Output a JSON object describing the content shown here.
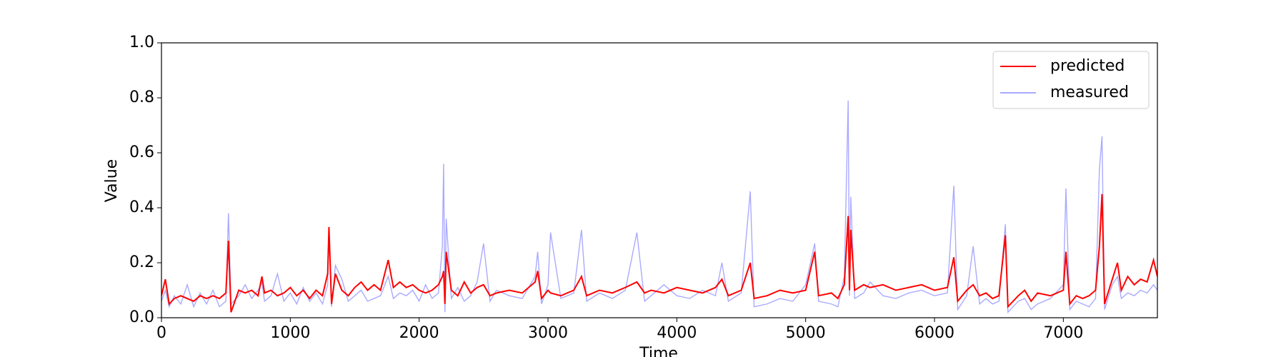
{
  "chart_data": {
    "type": "line",
    "xlabel": "Time",
    "ylabel": "Value",
    "x": [
      0,
      30,
      60,
      100,
      150,
      200,
      250,
      300,
      350,
      400,
      450,
      500,
      520,
      540,
      600,
      650,
      700,
      750,
      780,
      800,
      850,
      900,
      950,
      1000,
      1050,
      1100,
      1150,
      1200,
      1250,
      1290,
      1300,
      1320,
      1350,
      1400,
      1450,
      1500,
      1550,
      1600,
      1650,
      1700,
      1760,
      1800,
      1850,
      1900,
      1950,
      2000,
      2050,
      2100,
      2150,
      2180,
      2190,
      2200,
      2210,
      2250,
      2300,
      2350,
      2400,
      2450,
      2500,
      2550,
      2600,
      2700,
      2800,
      2900,
      2920,
      2950,
      3000,
      3020,
      3100,
      3200,
      3260,
      3300,
      3400,
      3500,
      3600,
      3690,
      3750,
      3800,
      3900,
      4000,
      4100,
      4200,
      4300,
      4350,
      4400,
      4500,
      4570,
      4600,
      4700,
      4800,
      4900,
      5000,
      5070,
      5100,
      5200,
      5250,
      5300,
      5330,
      5340,
      5350,
      5380,
      5450,
      5500,
      5600,
      5700,
      5800,
      5900,
      6000,
      6100,
      6150,
      6180,
      6250,
      6300,
      6350,
      6400,
      6450,
      6500,
      6550,
      6570,
      6650,
      6700,
      6750,
      6800,
      6900,
      7000,
      7020,
      7050,
      7100,
      7150,
      7200,
      7250,
      7280,
      7300,
      7320,
      7380,
      7420,
      7450,
      7500,
      7550,
      7600,
      7650,
      7700,
      7730
    ],
    "series": [
      {
        "name": "predicted",
        "color": "#ff0000",
        "values": [
          0.08,
          0.14,
          0.05,
          0.07,
          0.08,
          0.07,
          0.06,
          0.08,
          0.07,
          0.08,
          0.07,
          0.09,
          0.28,
          0.02,
          0.1,
          0.09,
          0.1,
          0.08,
          0.15,
          0.09,
          0.1,
          0.08,
          0.09,
          0.11,
          0.08,
          0.1,
          0.07,
          0.1,
          0.08,
          0.16,
          0.33,
          0.05,
          0.16,
          0.1,
          0.08,
          0.11,
          0.13,
          0.1,
          0.12,
          0.1,
          0.21,
          0.11,
          0.13,
          0.11,
          0.12,
          0.1,
          0.09,
          0.1,
          0.12,
          0.15,
          0.17,
          0.05,
          0.24,
          0.1,
          0.08,
          0.13,
          0.09,
          0.11,
          0.12,
          0.08,
          0.09,
          0.1,
          0.09,
          0.13,
          0.17,
          0.07,
          0.1,
          0.09,
          0.08,
          0.1,
          0.15,
          0.08,
          0.1,
          0.09,
          0.11,
          0.13,
          0.09,
          0.1,
          0.09,
          0.11,
          0.1,
          0.09,
          0.11,
          0.14,
          0.08,
          0.1,
          0.2,
          0.07,
          0.08,
          0.1,
          0.09,
          0.1,
          0.24,
          0.08,
          0.09,
          0.07,
          0.12,
          0.37,
          0.1,
          0.32,
          0.1,
          0.12,
          0.11,
          0.12,
          0.1,
          0.11,
          0.12,
          0.1,
          0.11,
          0.22,
          0.06,
          0.1,
          0.12,
          0.08,
          0.09,
          0.07,
          0.08,
          0.3,
          0.04,
          0.08,
          0.1,
          0.06,
          0.09,
          0.08,
          0.1,
          0.24,
          0.05,
          0.08,
          0.07,
          0.08,
          0.1,
          0.26,
          0.45,
          0.05,
          0.14,
          0.2,
          0.1,
          0.15,
          0.12,
          0.14,
          0.13,
          0.21,
          0.15
        ]
      },
      {
        "name": "measured",
        "color": "#aaaaff",
        "values": [
          0.06,
          0.1,
          0.04,
          0.08,
          0.05,
          0.12,
          0.04,
          0.09,
          0.05,
          0.1,
          0.04,
          0.06,
          0.38,
          0.05,
          0.08,
          0.12,
          0.07,
          0.1,
          0.13,
          0.06,
          0.08,
          0.16,
          0.06,
          0.09,
          0.05,
          0.11,
          0.06,
          0.09,
          0.05,
          0.12,
          0.32,
          0.04,
          0.19,
          0.14,
          0.06,
          0.08,
          0.1,
          0.06,
          0.07,
          0.08,
          0.15,
          0.07,
          0.09,
          0.08,
          0.1,
          0.06,
          0.12,
          0.07,
          0.09,
          0.26,
          0.56,
          0.02,
          0.36,
          0.07,
          0.11,
          0.06,
          0.08,
          0.13,
          0.27,
          0.06,
          0.1,
          0.08,
          0.07,
          0.15,
          0.24,
          0.05,
          0.12,
          0.31,
          0.07,
          0.09,
          0.32,
          0.06,
          0.09,
          0.07,
          0.1,
          0.31,
          0.06,
          0.08,
          0.12,
          0.08,
          0.07,
          0.1,
          0.08,
          0.2,
          0.06,
          0.09,
          0.46,
          0.04,
          0.05,
          0.07,
          0.06,
          0.12,
          0.27,
          0.06,
          0.05,
          0.04,
          0.15,
          0.79,
          0.08,
          0.44,
          0.07,
          0.09,
          0.13,
          0.08,
          0.07,
          0.09,
          0.1,
          0.08,
          0.09,
          0.48,
          0.03,
          0.08,
          0.26,
          0.05,
          0.07,
          0.05,
          0.06,
          0.34,
          0.02,
          0.06,
          0.07,
          0.03,
          0.05,
          0.07,
          0.12,
          0.47,
          0.03,
          0.06,
          0.05,
          0.04,
          0.07,
          0.54,
          0.66,
          0.03,
          0.12,
          0.15,
          0.07,
          0.09,
          0.08,
          0.1,
          0.09,
          0.12,
          0.1
        ]
      }
    ],
    "xlim": [
      0,
      7730
    ],
    "ylim": [
      0,
      1
    ],
    "xticks": [
      0,
      1000,
      2000,
      3000,
      4000,
      5000,
      6000,
      7000
    ],
    "yticks": [
      {
        "value": 0,
        "label": "0.0"
      },
      0.2,
      0.4,
      0.6,
      0.8,
      {
        "value": 1,
        "label": "1.0"
      }
    ],
    "legend": "upper right",
    "grid": false
  }
}
